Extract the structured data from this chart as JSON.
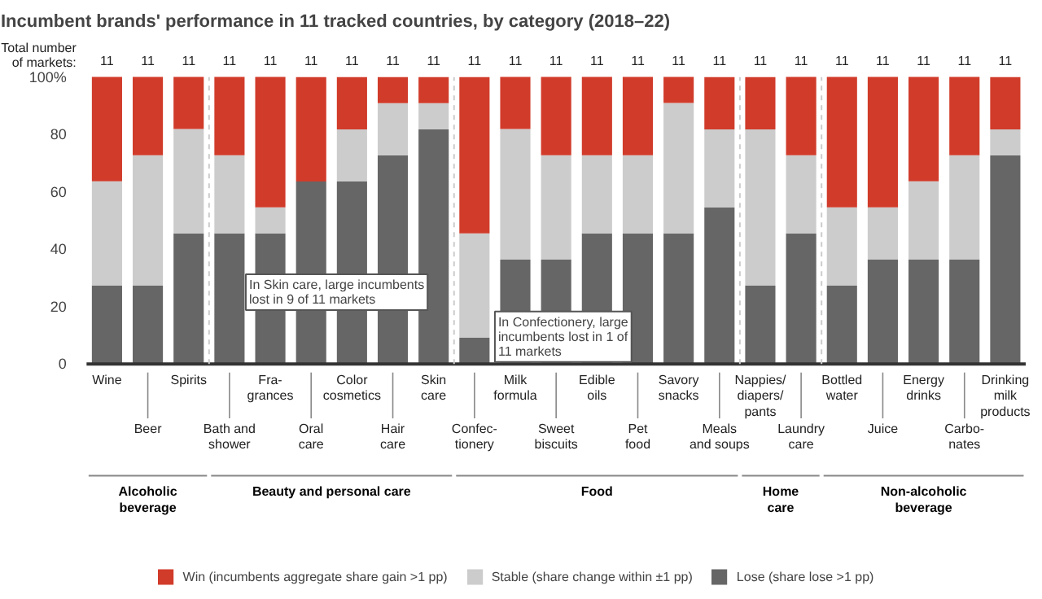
{
  "chart_data": {
    "type": "bar",
    "stacked": true,
    "title": "Incumbent brands' performance in 11 tracked countries, by category (2018–22)",
    "categories": [
      "Wine",
      "Beer",
      "Spirits",
      "Bath and\nshower",
      "Fra-\ngrances",
      "Oral\ncare",
      "Color\ncosmetics",
      "Hair\ncare",
      "Skin\ncare",
      "Confec-\ntionery",
      "Milk\nformula",
      "Sweet\nbiscuits",
      "Edible\noils",
      "Pet\nfood",
      "Savory\nsnacks",
      "Meals\nand soups",
      "Nappies/\ndiapers/\npants",
      "Laundry\ncare",
      "Bottled\nwater",
      "Juice",
      "Energy\ndrinks",
      "Carbo-\nnates",
      "Drinking\nmilk\nproducts"
    ],
    "series": [
      {
        "name": "Lose (share lose >1 pp)",
        "color": "#666666",
        "values": [
          27.3,
          27.3,
          45.5,
          45.5,
          45.5,
          63.6,
          63.6,
          72.7,
          81.8,
          9.1,
          36.4,
          36.4,
          45.5,
          45.5,
          45.5,
          54.5,
          27.3,
          45.5,
          27.3,
          36.4,
          36.4,
          36.4,
          72.7
        ]
      },
      {
        "name": "Stable (share change within ±1 pp)",
        "color": "#cccccc",
        "values": [
          36.4,
          45.5,
          36.4,
          27.3,
          9.1,
          0,
          18.2,
          18.2,
          9.1,
          36.4,
          45.5,
          36.4,
          27.3,
          27.3,
          45.5,
          27.3,
          54.5,
          27.3,
          27.3,
          18.2,
          27.3,
          36.4,
          9.1
        ]
      },
      {
        "name": "Win (incumbents aggregate share gain >1 pp)",
        "color": "#d13b2a",
        "values": [
          36.4,
          27.3,
          18.2,
          27.3,
          45.5,
          36.4,
          18.2,
          9.1,
          9.1,
          54.5,
          18.2,
          27.3,
          27.3,
          27.3,
          9.1,
          18.2,
          18.2,
          27.3,
          45.5,
          45.5,
          36.4,
          27.3,
          18.2
        ]
      }
    ],
    "ylim": [
      0,
      100
    ],
    "yticks": [
      0,
      20,
      40,
      60,
      80,
      {
        "value": 100,
        "label": "100%"
      }
    ],
    "legend": "bottom",
    "grid": false,
    "annotations": [
      "Total number\nof markets:",
      "11",
      "11",
      "11",
      "11",
      "11",
      "11",
      "11",
      "11",
      "11",
      "11",
      "11",
      "11",
      "11",
      "11",
      "11",
      "11",
      "11",
      "11",
      "11",
      "11",
      "11",
      "11",
      "11",
      "In Skin care, large incumbents\nlost in 9 of 11 markets",
      "In Confectionery, large\nincumbents lost in 1 of\n11 markets",
      "Alcoholic\nbeverage",
      "Beauty and personal care",
      "Food",
      "Home\ncare",
      "Non-alcoholic\nbeverage"
    ]
  }
}
